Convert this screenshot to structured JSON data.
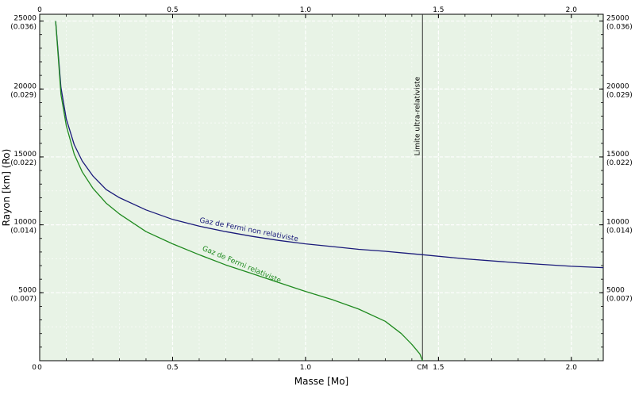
{
  "chart_data": {
    "type": "line",
    "xlabel": "Masse [Mo]",
    "ylabel": "Rayon [km] (Ro)",
    "xlim": [
      0,
      2.12
    ],
    "ylim": [
      0,
      25500
    ],
    "grid": true,
    "x_ticks_bottom": [
      {
        "value": 0,
        "label": "0"
      },
      {
        "value": 0.5,
        "label": "0.5"
      },
      {
        "value": 1.0,
        "label": "1.0"
      },
      {
        "value": 1.5,
        "label": "1.5"
      },
      {
        "value": 2.0,
        "label": "2.0"
      }
    ],
    "x_ticks_top": [
      {
        "value": 0,
        "label": "0"
      },
      {
        "value": 0.5,
        "label": "0.5"
      },
      {
        "value": 1.0,
        "label": "1.0"
      },
      {
        "value": 1.5,
        "label": "1.5"
      },
      {
        "value": 2.0,
        "label": "2.0"
      }
    ],
    "y_ticks": [
      {
        "value": 5000,
        "label": "5000",
        "sublabel": "(0.007)"
      },
      {
        "value": 10000,
        "label": "10000",
        "sublabel": "(0.014)"
      },
      {
        "value": 15000,
        "label": "15000",
        "sublabel": "(0.022)"
      },
      {
        "value": 20000,
        "label": "20000",
        "sublabel": "(0.029)"
      },
      {
        "value": 25000,
        "label": "25000",
        "sublabel": "(0.036)"
      }
    ],
    "y_zero_label": "0",
    "annotations": {
      "cm_label": "CM",
      "cm_value": 1.44,
      "limit_label": "Limite ultra-relativiste"
    },
    "series": [
      {
        "name": "Gaz de Fermi non relativiste",
        "color": "#1a1a7a",
        "x": [
          0.06,
          0.08,
          0.1,
          0.13,
          0.16,
          0.2,
          0.25,
          0.3,
          0.4,
          0.5,
          0.6,
          0.7,
          0.8,
          0.9,
          1.0,
          1.1,
          1.2,
          1.3,
          1.44,
          1.6,
          1.8,
          2.0,
          2.12
        ],
        "y": [
          25000,
          20100,
          17800,
          15900,
          14700,
          13600,
          12600,
          12000,
          11100,
          10400,
          9900,
          9500,
          9150,
          8850,
          8600,
          8400,
          8200,
          8050,
          7800,
          7500,
          7200,
          6950,
          6850
        ]
      },
      {
        "name": "Gaz de Fermi relativiste",
        "color": "#1f8a1f",
        "x": [
          0.06,
          0.08,
          0.1,
          0.13,
          0.16,
          0.2,
          0.25,
          0.3,
          0.4,
          0.5,
          0.6,
          0.7,
          0.8,
          0.9,
          1.0,
          1.1,
          1.2,
          1.3,
          1.36,
          1.4,
          1.43,
          1.44
        ],
        "y": [
          25000,
          19600,
          17300,
          15200,
          13900,
          12700,
          11600,
          10800,
          9500,
          8600,
          7800,
          7050,
          6400,
          5750,
          5100,
          4500,
          3800,
          2900,
          2000,
          1200,
          500,
          0
        ]
      }
    ]
  }
}
